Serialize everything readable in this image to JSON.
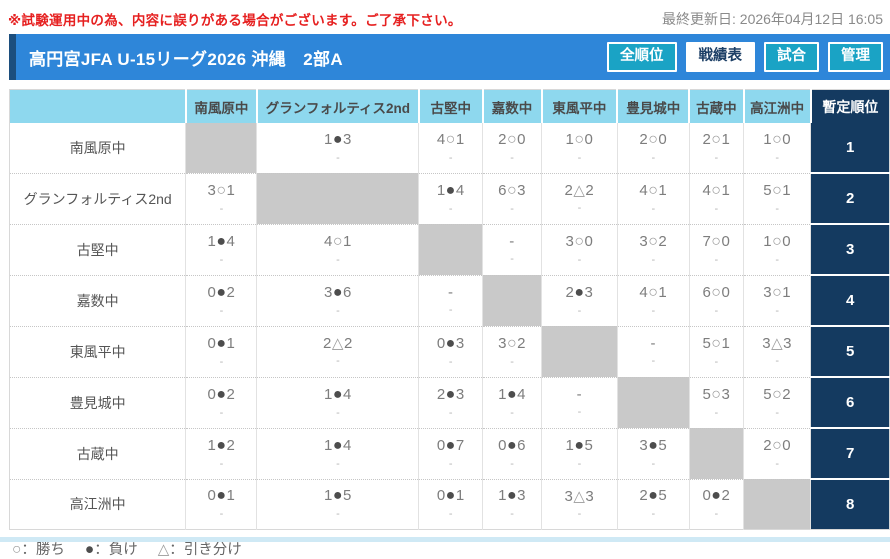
{
  "notice": {
    "warning": "※試験運用中の為、内容に誤りがある場合がございます。ご了承下さい。",
    "last_updated": "最終更新日: 2026年04月12日 16:05"
  },
  "header": {
    "title": "高円宮JFA U-15リーグ2026 沖縄　2部A",
    "tabs": [
      {
        "name": "all-rankings",
        "label": "全順位",
        "active": false
      },
      {
        "name": "results-grid",
        "label": "戦績表",
        "active": true
      },
      {
        "name": "matches",
        "label": "試合",
        "active": false
      },
      {
        "name": "admin",
        "label": "管理",
        "active": false
      }
    ]
  },
  "table": {
    "rank_header": "暫定順位",
    "cell_sub": "-",
    "teams": [
      "南風原中",
      "グランフォルティス2nd",
      "古堅中",
      "嘉数中",
      "東風平中",
      "豊見城中",
      "古蔵中",
      "高江洲中"
    ],
    "rows": [
      {
        "team": "南風原中",
        "rank": "1",
        "cells": [
          null,
          "1●3",
          "4○1",
          "2○0",
          "1○0",
          "2○0",
          "2○1",
          "1○0"
        ]
      },
      {
        "team": "グランフォルティス2nd",
        "rank": "2",
        "cells": [
          "3○1",
          null,
          "1●4",
          "6○3",
          "2△2",
          "4○1",
          "4○1",
          "5○1"
        ]
      },
      {
        "team": "古堅中",
        "rank": "3",
        "cells": [
          "1●4",
          "4○1",
          null,
          "-",
          "3○0",
          "3○2",
          "7○0",
          "1○0"
        ]
      },
      {
        "team": "嘉数中",
        "rank": "4",
        "cells": [
          "0●2",
          "3●6",
          "-",
          null,
          "2●3",
          "4○1",
          "6○0",
          "3○1"
        ]
      },
      {
        "team": "東風平中",
        "rank": "5",
        "cells": [
          "0●1",
          "2△2",
          "0●3",
          "3○2",
          null,
          "-",
          "5○1",
          "3△3"
        ]
      },
      {
        "team": "豊見城中",
        "rank": "6",
        "cells": [
          "0●2",
          "1●4",
          "2●3",
          "1●4",
          "-",
          null,
          "5○3",
          "5○2"
        ]
      },
      {
        "team": "古蔵中",
        "rank": "7",
        "cells": [
          "1●2",
          "1●4",
          "0●7",
          "0●6",
          "1●5",
          "3●5",
          null,
          "2○0"
        ]
      },
      {
        "team": "高江洲中",
        "rank": "8",
        "cells": [
          "0●1",
          "1●5",
          "0●1",
          "1●3",
          "3△3",
          "2●5",
          "0●2",
          null
        ]
      }
    ]
  },
  "legend": {
    "separator": "：",
    "items": [
      {
        "mark": "○",
        "mark_name": "win-circle",
        "label": "勝ち"
      },
      {
        "mark": "●",
        "mark_name": "lose-circle",
        "label": "負け"
      },
      {
        "mark": "△",
        "mark_name": "draw-triangle",
        "label": "引き分け"
      }
    ]
  },
  "colors": {
    "warning_red": "#e62020",
    "header_blue": "#2e86d9",
    "accent_navy": "#1c4e7d",
    "tab_teal": "#1aa3c5",
    "table_header_cyan": "#8ed8ee",
    "rank_navy": "#143a60",
    "self_cell_gray": "#c9c9c9",
    "bottom_strip_blue": "#cfe9f5"
  }
}
